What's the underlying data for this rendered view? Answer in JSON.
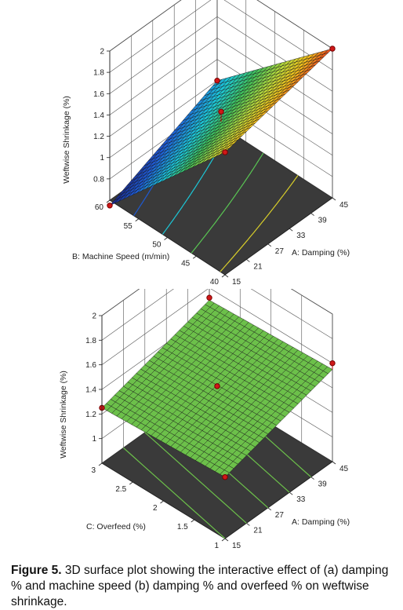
{
  "chart_data": [
    {
      "type": "surface3d",
      "zlabel": "Weftwise Shrinkage (%)",
      "xlabel": "A: Damping (%)",
      "ylabel": "B: Machine Speed (m/min)",
      "x_ticks": [
        "15",
        "21",
        "27",
        "33",
        "39",
        "45"
      ],
      "y_ticks": [
        "40",
        "45",
        "50",
        "55",
        "60"
      ],
      "z_ticks": [
        "0.8",
        "1",
        "1.2",
        "1.4",
        "1.6",
        "1.8",
        "2"
      ],
      "xlim": [
        15,
        45
      ],
      "ylim": [
        40,
        60
      ],
      "zlim": [
        0.6,
        2.0
      ],
      "surface_corners": {
        "damping_15_speed_40": 1.75,
        "damping_45_speed_40": 2.0,
        "damping_15_speed_60": 0.55,
        "damping_45_speed_60": 1.0
      },
      "design_points": [
        {
          "damping": 15,
          "speed": 40,
          "shrinkage": 1.75
        },
        {
          "damping": 45,
          "speed": 40,
          "shrinkage": 2.0
        },
        {
          "damping": 15,
          "speed": 60,
          "shrinkage": 0.55
        },
        {
          "damping": 45,
          "speed": 60,
          "shrinkage": 1.0
        },
        {
          "damping": 30,
          "speed": 50,
          "shrinkage": 1.42
        }
      ],
      "colormap": "blue-cyan-green-yellow-red"
    },
    {
      "type": "surface3d",
      "zlabel": "Weftwise Shrinkage (%)",
      "xlabel": "A: Damping (%)",
      "ylabel": "C: Overfeed (%)",
      "x_ticks": [
        "15",
        "21",
        "27",
        "33",
        "39",
        "45"
      ],
      "y_ticks": [
        "1",
        "1.5",
        "2",
        "2.5",
        "3"
      ],
      "z_ticks": [
        "1",
        "1.2",
        "1.4",
        "1.6",
        "1.8",
        "2"
      ],
      "xlim": [
        15,
        45
      ],
      "ylim": [
        1,
        3
      ],
      "zlim": [
        0.8,
        2.0
      ],
      "surface_corners": {
        "damping_15_overfeed_1": 1.3,
        "damping_45_overfeed_1": 1.55,
        "damping_15_overfeed_3": 1.25,
        "damping_45_overfeed_3": 1.5
      },
      "design_points": [
        {
          "damping": 15,
          "overfeed": 1,
          "shrinkage": 1.3
        },
        {
          "damping": 45,
          "overfeed": 1,
          "shrinkage": 1.6
        },
        {
          "damping": 15,
          "overfeed": 3,
          "shrinkage": 1.25
        },
        {
          "damping": 45,
          "overfeed": 3,
          "shrinkage": 1.52
        },
        {
          "damping": 30,
          "overfeed": 2,
          "shrinkage": 1.42
        }
      ],
      "surface_color": "#6cc04a"
    }
  ],
  "caption": {
    "label": "Figure 5.",
    "text": " 3D surface plot showing the interactive effect of (a) damping % and machine speed (b) damping % and overfeed % on weftwise shrinkage."
  }
}
